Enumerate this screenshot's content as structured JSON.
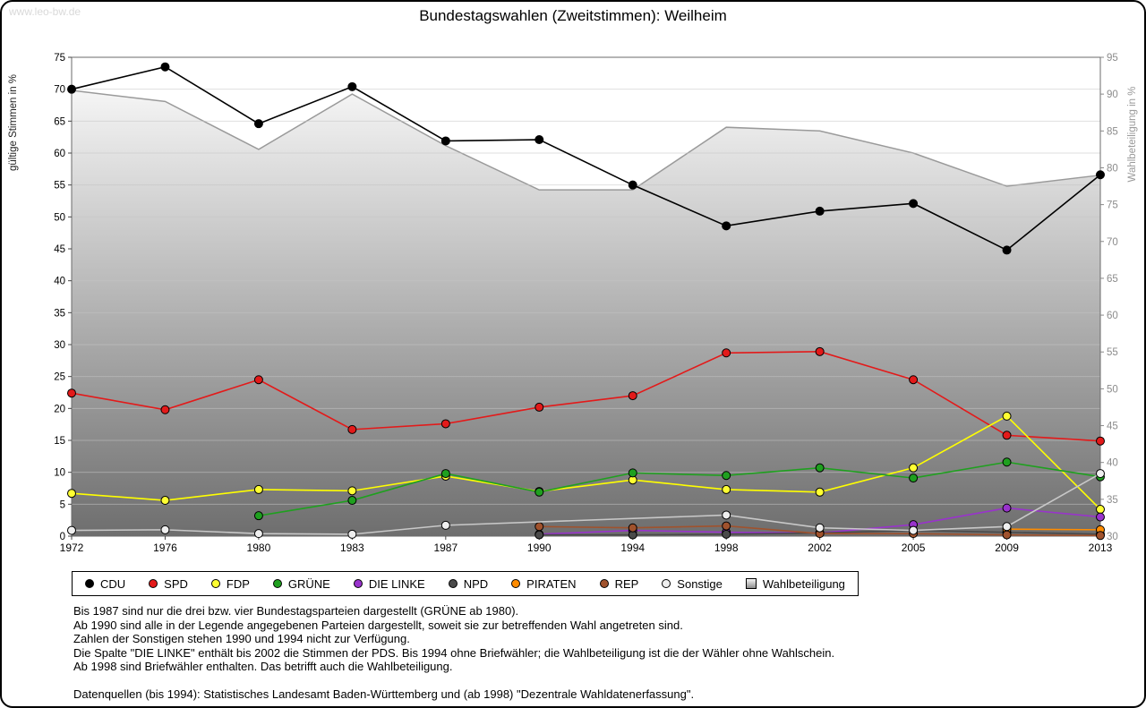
{
  "watermark": "www.leo-bw.de",
  "title": "Bundestagswahlen (Zweitstimmen): Weilheim",
  "chart_data": {
    "type": "line",
    "x": [
      1972,
      1976,
      1980,
      1983,
      1987,
      1990,
      1994,
      1998,
      2002,
      2005,
      2009,
      2013
    ],
    "left_axis": {
      "label": "gültige Stimmen in %",
      "min": 0,
      "max": 75,
      "tick_step": 5
    },
    "right_axis": {
      "label": "Wahlbeteiligung in %",
      "min": 30,
      "max": 95,
      "tick_step": 5
    },
    "grid": true,
    "legend_position": "bottom",
    "series": [
      {
        "name": "CDU",
        "color": "#000000",
        "axis": "left",
        "marker": "circle",
        "values": [
          70.0,
          73.5,
          64.6,
          70.4,
          61.9,
          62.1,
          55.0,
          48.6,
          50.9,
          52.1,
          44.8,
          56.6
        ]
      },
      {
        "name": "SPD",
        "color": "#e31a1a",
        "axis": "left",
        "marker": "circle",
        "values": [
          22.4,
          19.8,
          24.5,
          16.7,
          17.6,
          20.2,
          22.0,
          28.7,
          28.9,
          24.5,
          15.8,
          14.9
        ]
      },
      {
        "name": "FDP",
        "color": "#ffff00",
        "marker_fill": "#ffff33",
        "axis": "left",
        "marker": "circle",
        "values": [
          6.7,
          5.6,
          7.3,
          7.1,
          9.4,
          7.0,
          8.8,
          7.3,
          6.9,
          10.7,
          18.8,
          4.2
        ]
      },
      {
        "name": "GRÜNE",
        "color": "#1fa01f",
        "axis": "left",
        "marker": "circle",
        "values": [
          null,
          null,
          3.2,
          5.6,
          9.8,
          6.9,
          9.9,
          9.5,
          10.7,
          9.1,
          11.6,
          9.3
        ]
      },
      {
        "name": "DIE LINKE",
        "color": "#9933cc",
        "axis": "left",
        "marker": "circle",
        "values": [
          null,
          null,
          null,
          null,
          null,
          0.3,
          0.9,
          0.6,
          0.5,
          1.8,
          4.4,
          3.0
        ]
      },
      {
        "name": "NPD",
        "color": "#4a4a4a",
        "axis": "left",
        "marker": "circle",
        "values": [
          null,
          null,
          null,
          null,
          null,
          0.2,
          0.2,
          0.3,
          0.5,
          0.9,
          0.6,
          0.3
        ]
      },
      {
        "name": "PIRATEN",
        "color": "#ff8c00",
        "axis": "left",
        "marker": "circle",
        "values": [
          null,
          null,
          null,
          null,
          null,
          null,
          null,
          null,
          null,
          null,
          1.1,
          1.0
        ]
      },
      {
        "name": "REP",
        "color": "#a0522d",
        "axis": "left",
        "marker": "circle",
        "values": [
          null,
          null,
          null,
          null,
          null,
          1.5,
          1.3,
          1.6,
          0.4,
          0.4,
          0.2,
          0.1
        ]
      },
      {
        "name": "Sonstige",
        "color": "#c8c8c8",
        "marker_fill": "#efefef",
        "axis": "left",
        "marker": "circle",
        "values": [
          0.9,
          1.0,
          0.4,
          0.3,
          1.7,
          null,
          null,
          3.3,
          1.3,
          0.9,
          1.5,
          9.8
        ]
      },
      {
        "name": "Wahlbeteiligung",
        "color": "#999999",
        "axis": "right",
        "type": "area",
        "marker": "square",
        "values": [
          90.5,
          89.0,
          82.5,
          90.0,
          83.0,
          77.0,
          77.0,
          85.5,
          85.0,
          82.0,
          77.5,
          79.0
        ]
      }
    ]
  },
  "notes": {
    "lines": [
      "Bis 1987 sind nur die drei bzw. vier Bundestagsparteien dargestellt (GRÜNE ab 1980).",
      "Ab 1990 sind alle in der Legende angegebenen Parteien dargestellt, soweit sie zur betreffenden Wahl angetreten sind.",
      "Zahlen der Sonstigen stehen 1990 und 1994 nicht zur Verfügung.",
      "Die Spalte \"DIE LINKE\" enthält bis 2002 die Stimmen der PDS. Bis 1994 ohne Briefwähler; die Wahlbeteiligung ist die der Wähler ohne Wahlschein.",
      "Ab 1998 sind Briefwähler enthalten. Das betrifft auch die Wahlbeteiligung."
    ]
  },
  "source": "Datenquellen (bis 1994): Statistisches Landesamt Baden-Württemberg und (ab 1998) \"Dezentrale Wahldatenerfassung\"."
}
